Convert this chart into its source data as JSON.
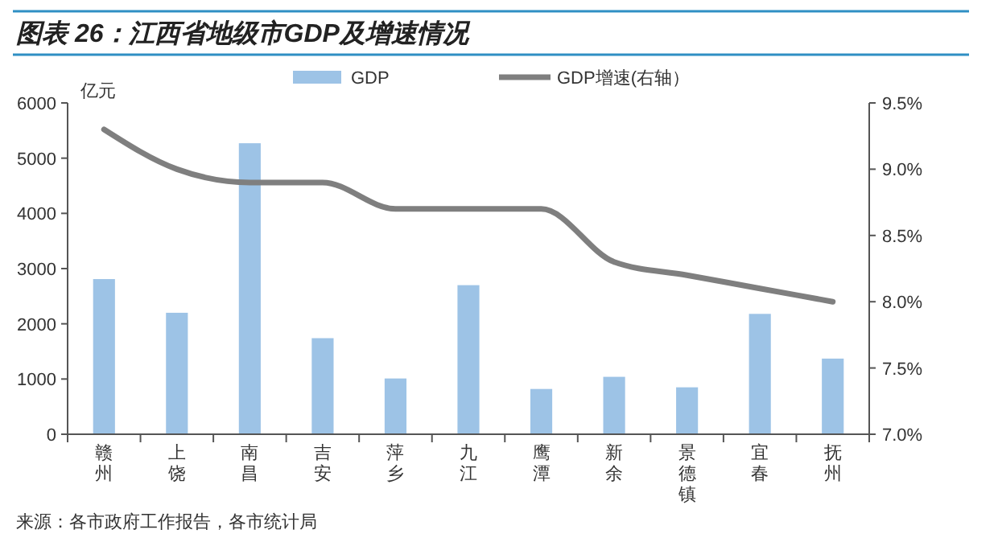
{
  "chart_data": {
    "type": "bar",
    "title": "图表 26：江西省地级市GDP及增速情况",
    "ylabel": "亿元",
    "categories": [
      "赣州",
      "上饶",
      "南昌",
      "吉安",
      "萍乡",
      "九江",
      "鹰潭",
      "新余",
      "景德镇",
      "宜春",
      "抚州"
    ],
    "series": [
      {
        "name": "GDP",
        "color": "#9dc3e6",
        "values": [
          2810,
          2200,
          5270,
          1740,
          1010,
          2700,
          820,
          1040,
          850,
          2180,
          1370
        ]
      },
      {
        "name": "GDP增速(右轴）",
        "type": "line",
        "axis": "y2",
        "color": "#7f7f7f",
        "values": [
          9.3,
          9.0,
          8.9,
          8.9,
          8.7,
          8.7,
          8.7,
          8.3,
          8.2,
          8.1,
          8.0
        ]
      }
    ],
    "ylim": [
      0,
      6000
    ],
    "yticks": [
      0,
      1000,
      2000,
      3000,
      4000,
      5000,
      6000
    ],
    "y2lim": [
      7.0,
      9.5
    ],
    "y2ticks": [
      {
        "value": 7.0,
        "label": "7.0%"
      },
      {
        "value": 7.5,
        "label": "7.5%"
      },
      {
        "value": 8.0,
        "label": "8.0%"
      },
      {
        "value": 8.5,
        "label": "8.5%"
      },
      {
        "value": 9.0,
        "label": "9.0%"
      },
      {
        "value": 9.5,
        "label": "9.5%"
      }
    ],
    "legend": "top",
    "annotations": [
      "来源：各市政府工作报告，各市统计局"
    ]
  }
}
